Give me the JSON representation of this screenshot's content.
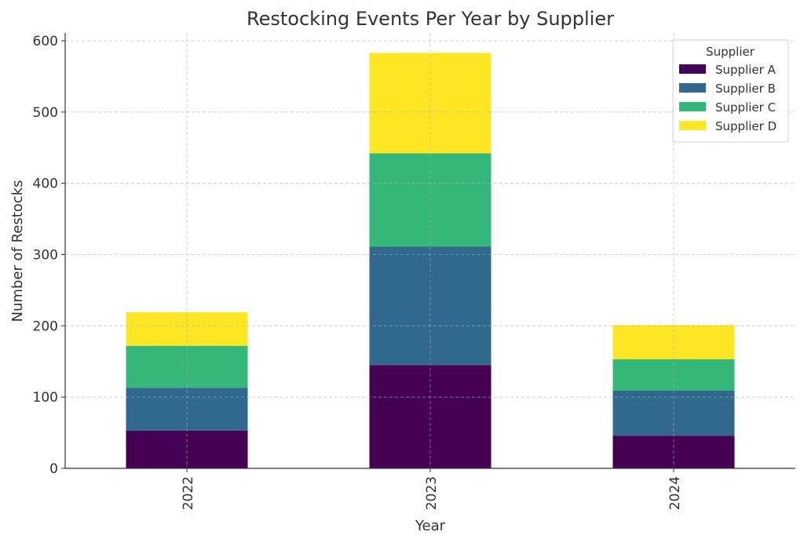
{
  "chart_data": {
    "type": "bar",
    "stacked": true,
    "title": "Restocking Events Per Year by Supplier",
    "xlabel": "Year",
    "ylabel": "Number of Restocks",
    "categories": [
      "2022",
      "2023",
      "2024"
    ],
    "series": [
      {
        "name": "Supplier A",
        "color": "#440154",
        "values": [
          53,
          145,
          46
        ]
      },
      {
        "name": "Supplier B",
        "color": "#31688e",
        "values": [
          60,
          166,
          63
        ]
      },
      {
        "name": "Supplier C",
        "color": "#35b779",
        "values": [
          59,
          131,
          44
        ]
      },
      {
        "name": "Supplier D",
        "color": "#fde725",
        "values": [
          47,
          141,
          48
        ]
      }
    ],
    "ylim": [
      0,
      612
    ],
    "yticks": [
      0,
      100,
      200,
      300,
      400,
      500,
      600
    ],
    "grid": true,
    "legend": {
      "title": "Supplier",
      "placement": "top-right"
    }
  }
}
